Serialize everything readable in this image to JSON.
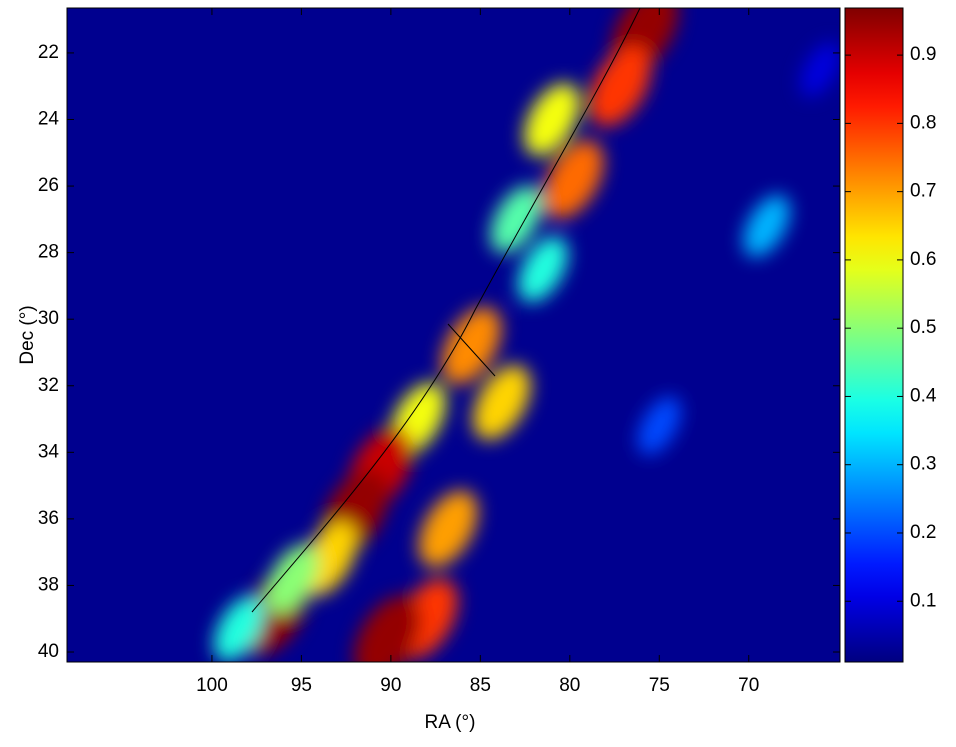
{
  "chart_data": {
    "type": "heatmap",
    "xlabel": "RA (°)",
    "ylabel": "Dec (°)",
    "x": [
      75.8,
      77.2,
      81,
      79.8,
      83,
      81.5,
      85.5,
      83.8,
      88.5,
      90.6,
      92,
      93.5,
      86.8,
      88,
      90.2,
      96.5,
      95.5,
      98.5,
      69,
      75,
      66
    ],
    "y": [
      21.3,
      23,
      24,
      25.8,
      27,
      28.5,
      30.8,
      32.5,
      33,
      34.5,
      35.8,
      37.2,
      36.3,
      39,
      39.6,
      38.8,
      37.8,
      39.3,
      27.2,
      33.2,
      22.5
    ],
    "values": [
      0.95,
      0.8,
      0.6,
      0.75,
      0.45,
      0.4,
      0.72,
      0.65,
      0.6,
      0.9,
      0.95,
      0.65,
      0.7,
      0.8,
      0.95,
      0.95,
      0.5,
      0.4,
      0.3,
      0.2,
      0.1
    ],
    "xlim": [
      108.1,
      64.9
    ],
    "ylim": [
      20.65,
      40.3
    ],
    "xticks": [
      100,
      95,
      90,
      85,
      80,
      75,
      70
    ],
    "yticks": [
      22,
      24,
      26,
      28,
      30,
      32,
      34,
      36,
      38,
      40
    ],
    "clim": [
      0.011,
      0.969
    ],
    "cticks": [
      0.1,
      0.2,
      0.3,
      0.4,
      0.5,
      0.6,
      0.7,
      0.8,
      0.9
    ],
    "colormap": "jet"
  }
}
